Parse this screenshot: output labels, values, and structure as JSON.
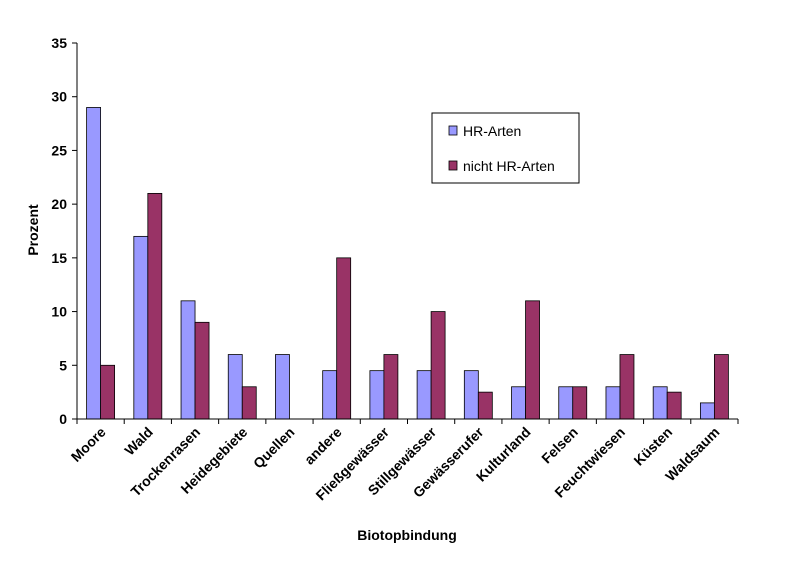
{
  "chart_data": {
    "type": "bar",
    "title": "",
    "xlabel": "Biotopbindung",
    "ylabel": "Prozent",
    "ylim": [
      0,
      35
    ],
    "yticks": [
      0,
      5,
      10,
      15,
      20,
      25,
      30,
      35
    ],
    "grid": false,
    "legend_position": "top-right",
    "categories": [
      "Moore",
      "Wald",
      "Trockenrasen",
      "Heidegebiete",
      "Quellen",
      "andere",
      "Fließgewässer",
      "Stillgewässer",
      "Gewässerufer",
      "Kulturland",
      "Felsen",
      "Feuchtwiesen",
      "Küsten",
      "Waldsaum"
    ],
    "series": [
      {
        "name": "HR-Arten",
        "color": "#9999ff",
        "values": [
          29,
          17,
          11,
          6,
          6,
          4.5,
          4.5,
          4.5,
          4.5,
          3,
          3,
          3,
          3,
          1.5
        ]
      },
      {
        "name": "nicht HR-Arten",
        "color": "#993366",
        "values": [
          5,
          21,
          9,
          3,
          0,
          15,
          6,
          10,
          2.5,
          11,
          3,
          6,
          2.5,
          6
        ]
      }
    ]
  }
}
